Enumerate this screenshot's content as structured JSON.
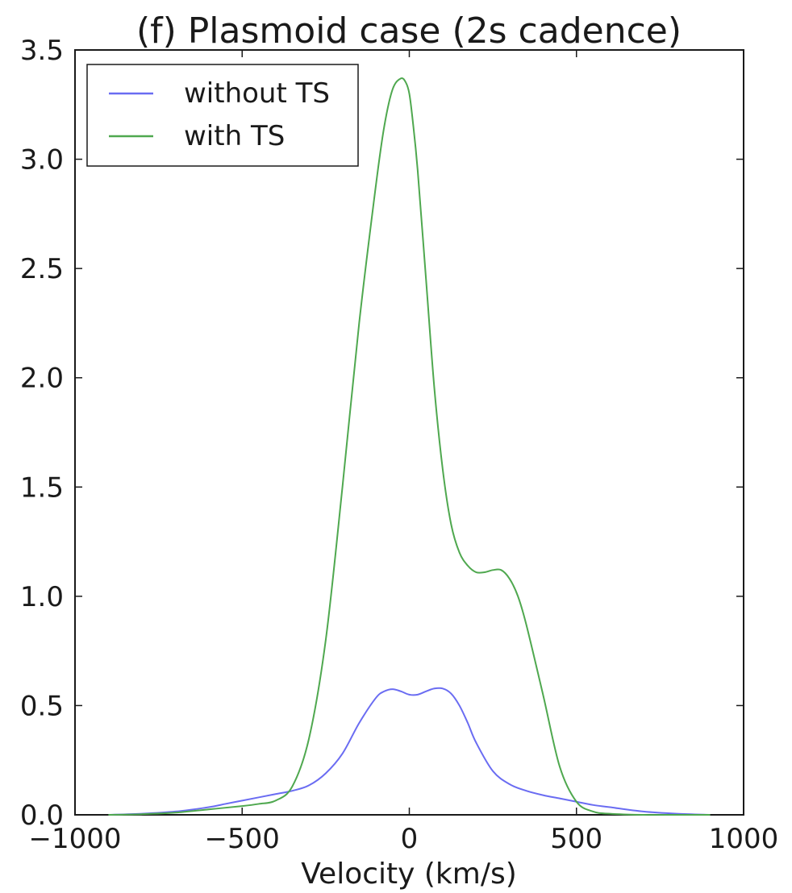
{
  "chart_data": {
    "type": "line",
    "title": "(f) Plasmoid case (2s cadence)",
    "xlabel": "Velocity (km/s)",
    "ylabel": "",
    "xlim": [
      -1000,
      1000
    ],
    "ylim": [
      0,
      3.5
    ],
    "xticks": [
      -1000,
      -500,
      0,
      500,
      1000
    ],
    "xtick_labels": [
      "−1000",
      "−500",
      "0",
      "500",
      "1000"
    ],
    "yticks": [
      0,
      0.5,
      1.0,
      1.5,
      2.0,
      2.5,
      3.0,
      3.5
    ],
    "ytick_labels": [
      "0.0",
      "0.5",
      "1.0",
      "1.5",
      "2.0",
      "2.5",
      "3.0",
      "3.5"
    ],
    "grid": false,
    "legend_position": "upper-left",
    "series": [
      {
        "name": "without TS",
        "color": "#6a6cf2",
        "x": [
          -900,
          -800,
          -700,
          -600,
          -550,
          -500,
          -450,
          -400,
          -350,
          -300,
          -250,
          -200,
          -150,
          -100,
          -75,
          -50,
          -25,
          0,
          25,
          50,
          75,
          100,
          125,
          150,
          175,
          200,
          250,
          300,
          350,
          400,
          450,
          500,
          550,
          600,
          700,
          800,
          900
        ],
        "y": [
          0.0,
          0.005,
          0.015,
          0.035,
          0.05,
          0.065,
          0.08,
          0.095,
          0.11,
          0.135,
          0.19,
          0.28,
          0.42,
          0.535,
          0.565,
          0.575,
          0.565,
          0.55,
          0.55,
          0.565,
          0.578,
          0.578,
          0.555,
          0.5,
          0.42,
          0.33,
          0.2,
          0.14,
          0.11,
          0.09,
          0.075,
          0.06,
          0.045,
          0.035,
          0.015,
          0.005,
          0.0
        ]
      },
      {
        "name": "with TS",
        "color": "#4fa84f",
        "x": [
          -900,
          -800,
          -700,
          -600,
          -500,
          -450,
          -400,
          -350,
          -300,
          -250,
          -200,
          -150,
          -100,
          -75,
          -50,
          -25,
          -10,
          0,
          10,
          25,
          50,
          75,
          100,
          125,
          150,
          175,
          200,
          225,
          250,
          275,
          300,
          325,
          350,
          400,
          450,
          500,
          550,
          600,
          700,
          800,
          900
        ],
        "y": [
          0.0,
          0.003,
          0.01,
          0.025,
          0.04,
          0.05,
          0.065,
          0.13,
          0.35,
          0.8,
          1.5,
          2.25,
          2.88,
          3.15,
          3.32,
          3.37,
          3.35,
          3.3,
          3.18,
          2.95,
          2.45,
          1.95,
          1.58,
          1.33,
          1.2,
          1.14,
          1.11,
          1.11,
          1.12,
          1.12,
          1.08,
          1.0,
          0.87,
          0.55,
          0.22,
          0.06,
          0.015,
          0.005,
          0.0,
          0.0,
          0.0
        ]
      }
    ]
  }
}
